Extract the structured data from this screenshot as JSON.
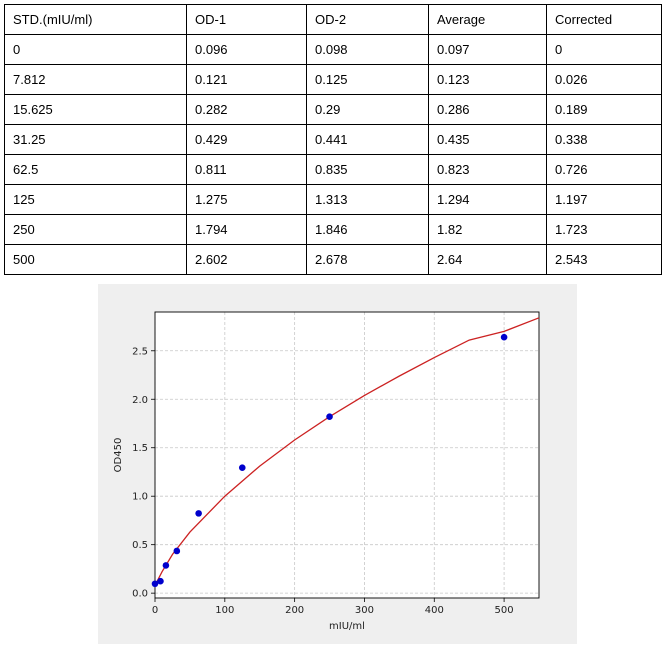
{
  "table": {
    "headers": [
      "STD.(mIU/ml)",
      "OD-1",
      "OD-2",
      "Average",
      "Corrected"
    ],
    "rows": [
      [
        "0",
        "0.096",
        "0.098",
        "0.097",
        "0"
      ],
      [
        "7.812",
        "0.121",
        "0.125",
        "0.123",
        "0.026"
      ],
      [
        "15.625",
        "0.282",
        "0.29",
        "0.286",
        "0.189"
      ],
      [
        "31.25",
        "0.429",
        "0.441",
        "0.435",
        "0.338"
      ],
      [
        "62.5",
        "0.811",
        "0.835",
        "0.823",
        "0.726"
      ],
      [
        "125",
        "1.275",
        "1.313",
        "1.294",
        "1.197"
      ],
      [
        "250",
        "1.794",
        "1.846",
        "1.82",
        "1.723"
      ],
      [
        "500",
        "2.602",
        "2.678",
        "2.64",
        "2.543"
      ]
    ]
  },
  "chart_data": {
    "type": "scatter",
    "title": "",
    "xlabel": "mIU/ml",
    "ylabel": "OD450",
    "xlim": [
      0,
      550
    ],
    "ylim": [
      -0.05,
      2.9
    ],
    "xticks": [
      "0",
      "100",
      "200",
      "300",
      "400",
      "500"
    ],
    "yticks": [
      "0.0",
      "0.5",
      "1.0",
      "1.5",
      "2.0",
      "2.5"
    ],
    "grid": true,
    "legend": "none",
    "series": [
      {
        "kind": "points",
        "color": "#0000cc",
        "x": [
          0,
          7.812,
          15.625,
          31.25,
          62.5,
          125,
          250,
          500
        ],
        "y": [
          0.097,
          0.123,
          0.286,
          0.435,
          0.823,
          1.294,
          1.82,
          2.64
        ]
      },
      {
        "kind": "fitted-curve",
        "color": "#cc2222",
        "x": [
          0,
          10,
          25,
          50,
          100,
          150,
          200,
          250,
          300,
          350,
          400,
          450,
          500,
          550
        ],
        "y": [
          0.08,
          0.22,
          0.4,
          0.63,
          1.0,
          1.31,
          1.58,
          1.82,
          2.04,
          2.24,
          2.43,
          2.61,
          2.7,
          2.84
        ]
      }
    ]
  }
}
